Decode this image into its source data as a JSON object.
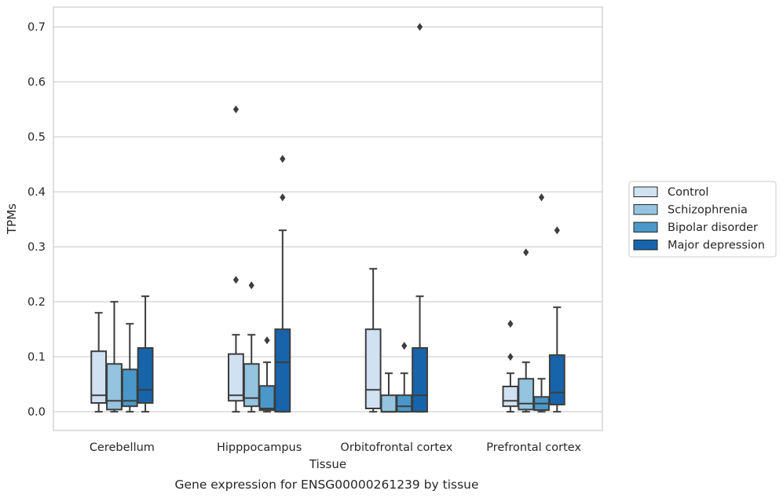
{
  "chart_data": {
    "type": "box",
    "title": "",
    "xlabel": "Tissue",
    "ylabel": "TPMs",
    "caption": "Gene expression for ENSG00000261239 by tissue",
    "ylim": [
      -0.034,
      0.736
    ],
    "yticks": [
      0.0,
      0.1,
      0.2,
      0.3,
      0.4,
      0.5,
      0.6,
      0.7
    ],
    "ytick_labels": [
      "0.0",
      "0.1",
      "0.2",
      "0.3",
      "0.4",
      "0.5",
      "0.6",
      "0.7"
    ],
    "grid": "horizontal",
    "legend_position": "right",
    "categories": [
      "Cerebellum",
      "Hipppocampus",
      "Orbitofrontal cortex",
      "Prefrontal cortex"
    ],
    "series": [
      {
        "name": "Control",
        "color": "#d0e1f2",
        "boxes": [
          {
            "whislo": 0.0,
            "q1": 0.016,
            "med": 0.03,
            "q3": 0.11,
            "whishi": 0.18,
            "fliers": []
          },
          {
            "whislo": 0.0,
            "q1": 0.02,
            "med": 0.03,
            "q3": 0.105,
            "whishi": 0.14,
            "fliers": [
              0.24,
              0.55
            ]
          },
          {
            "whislo": 0.0,
            "q1": 0.006,
            "med": 0.04,
            "q3": 0.15,
            "whishi": 0.26,
            "fliers": []
          },
          {
            "whislo": 0.0,
            "q1": 0.01,
            "med": 0.02,
            "q3": 0.046,
            "whishi": 0.07,
            "fliers": [
              0.1,
              0.16
            ]
          }
        ]
      },
      {
        "name": "Schizophrenia",
        "color": "#94c4df",
        "boxes": [
          {
            "whislo": 0.0,
            "q1": 0.004,
            "med": 0.02,
            "q3": 0.087,
            "whishi": 0.2,
            "fliers": []
          },
          {
            "whislo": 0.0,
            "q1": 0.01,
            "med": 0.025,
            "q3": 0.087,
            "whishi": 0.14,
            "fliers": [
              0.23
            ]
          },
          {
            "whislo": 0.0,
            "q1": 0.0,
            "med": 0.0,
            "q3": 0.03,
            "whishi": 0.07,
            "fliers": []
          },
          {
            "whislo": 0.0,
            "q1": 0.004,
            "med": 0.015,
            "q3": 0.06,
            "whishi": 0.09,
            "fliers": [
              0.29
            ]
          }
        ]
      },
      {
        "name": "Bipolar disorder",
        "color": "#4a98c9",
        "boxes": [
          {
            "whislo": 0.0,
            "q1": 0.01,
            "med": 0.02,
            "q3": 0.077,
            "whishi": 0.16,
            "fliers": []
          },
          {
            "whislo": 0.0,
            "q1": 0.003,
            "med": 0.006,
            "q3": 0.047,
            "whishi": 0.09,
            "fliers": [
              0.13
            ]
          },
          {
            "whislo": 0.0,
            "q1": 0.0,
            "med": 0.01,
            "q3": 0.03,
            "whishi": 0.07,
            "fliers": [
              0.12
            ]
          },
          {
            "whislo": 0.0,
            "q1": 0.003,
            "med": 0.015,
            "q3": 0.027,
            "whishi": 0.06,
            "fliers": [
              0.39
            ]
          }
        ]
      },
      {
        "name": "Major depression",
        "color": "#1764ab",
        "boxes": [
          {
            "whislo": 0.0,
            "q1": 0.016,
            "med": 0.04,
            "q3": 0.116,
            "whishi": 0.21,
            "fliers": []
          },
          {
            "whislo": 0.0,
            "q1": 0.0,
            "med": 0.09,
            "q3": 0.15,
            "whishi": 0.33,
            "fliers": [
              0.39,
              0.46
            ]
          },
          {
            "whislo": 0.0,
            "q1": 0.0,
            "med": 0.03,
            "q3": 0.116,
            "whishi": 0.21,
            "fliers": [
              0.7
            ]
          },
          {
            "whislo": 0.0,
            "q1": 0.013,
            "med": 0.035,
            "q3": 0.103,
            "whishi": 0.19,
            "fliers": [
              0.33
            ]
          }
        ]
      }
    ]
  }
}
